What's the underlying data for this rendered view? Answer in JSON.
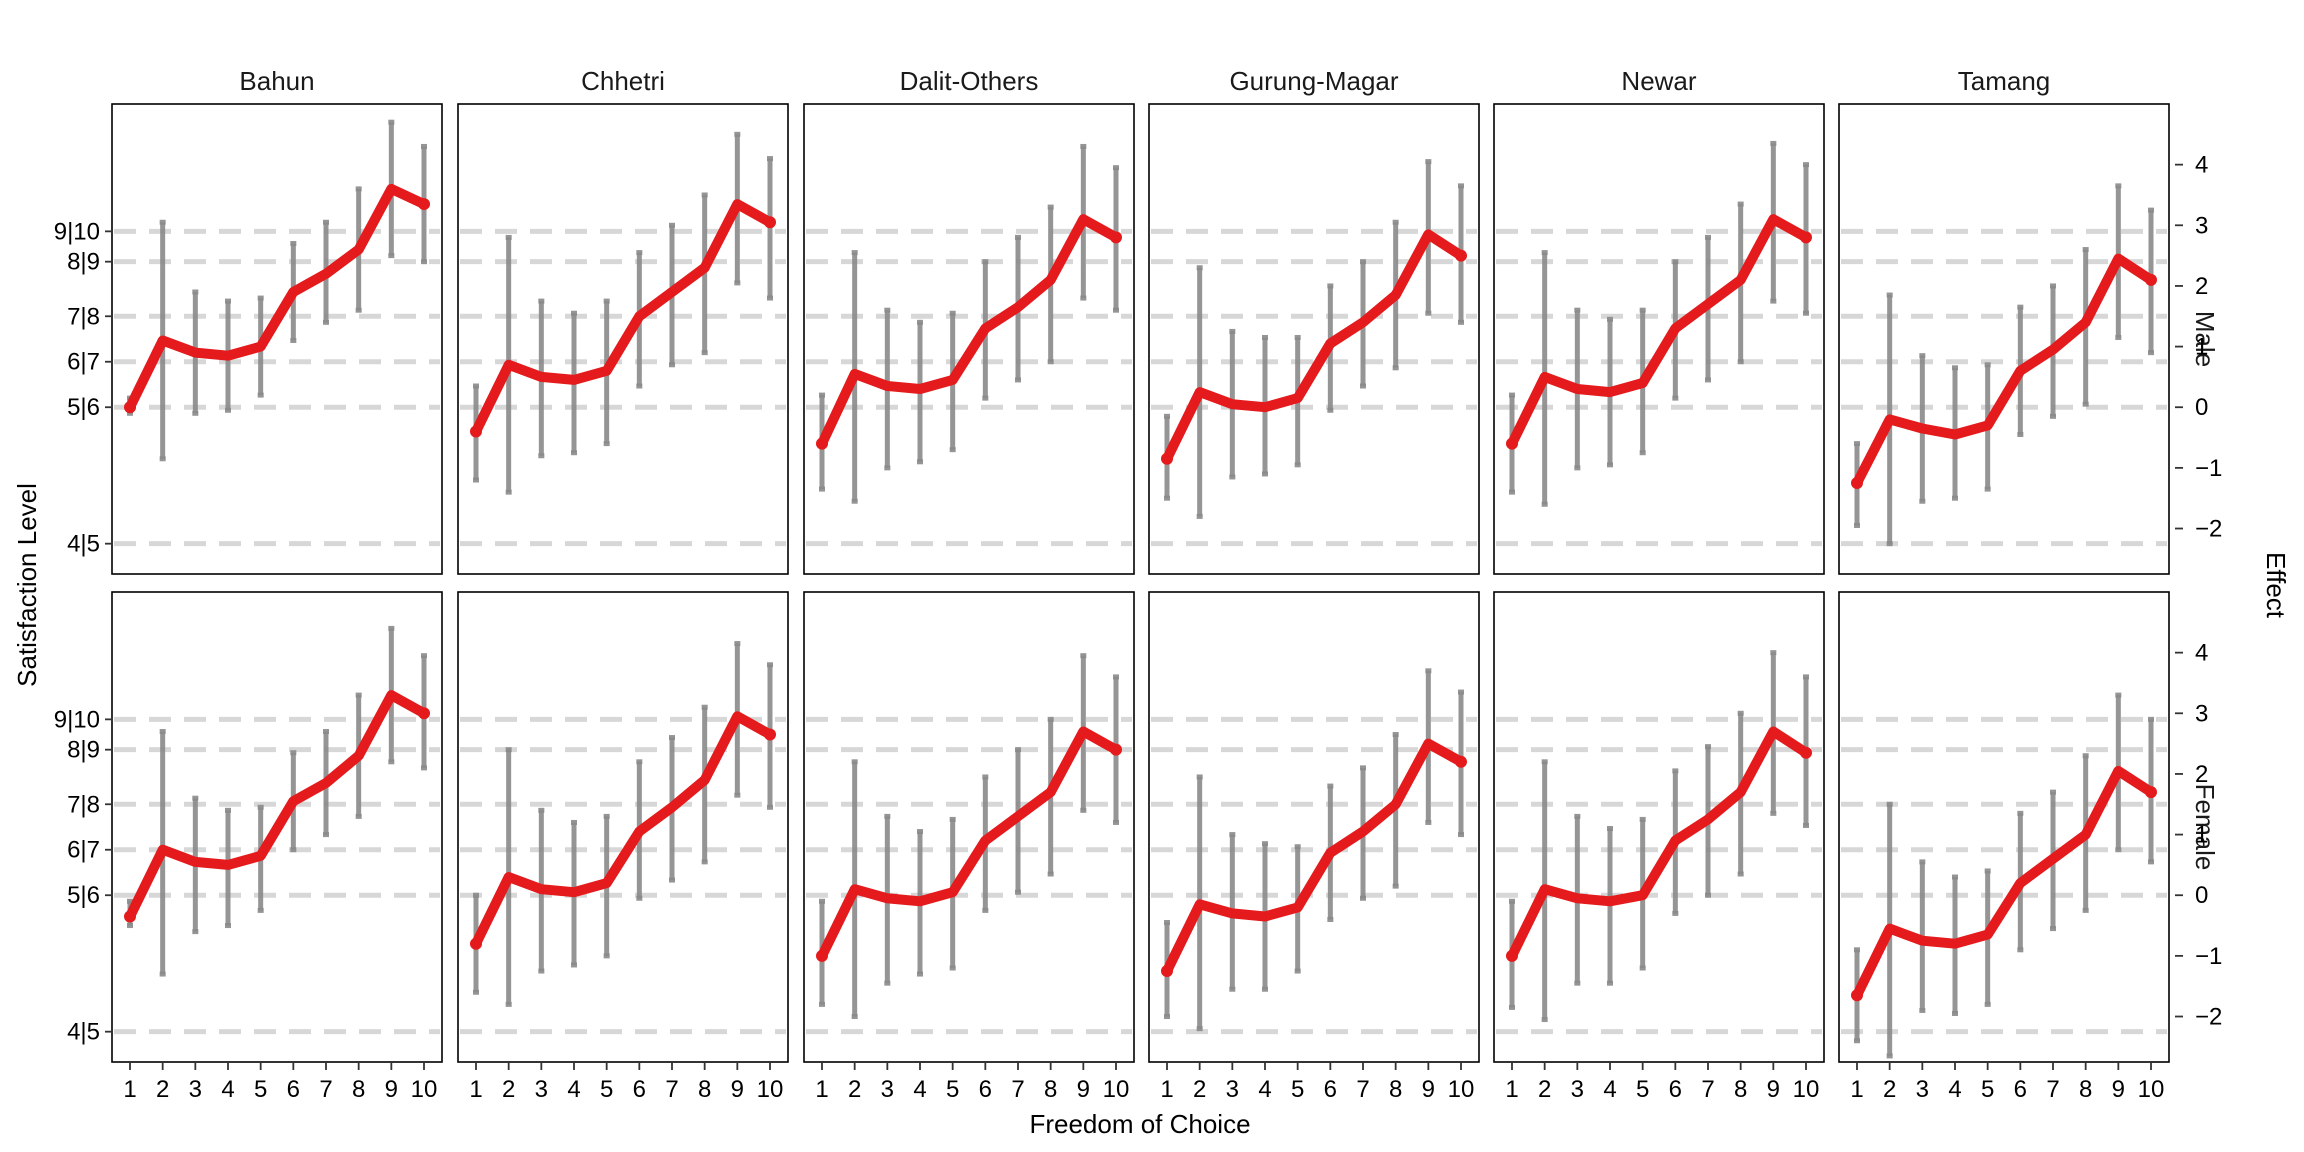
{
  "chart_data": {
    "type": "line",
    "facet_columns": [
      "Bahun",
      "Chhetri",
      "Dalit-Others",
      "Gurung-Magar",
      "Newar",
      "Tamang"
    ],
    "facet_rows": [
      "Male",
      "Female"
    ],
    "xlabel": "Freedom of Choice",
    "ylabel_left": "Satisfaction Level",
    "ylabel_right": "Effect",
    "x": [
      1,
      2,
      3,
      4,
      5,
      6,
      7,
      8,
      9,
      10
    ],
    "ylim": [
      -2.75,
      5.0
    ],
    "right_ticks": [
      -2,
      -1,
      0,
      1,
      2,
      3,
      4
    ],
    "thresholds": [
      {
        "label": "4|5",
        "value": -2.25
      },
      {
        "label": "5|6",
        "value": 0.0
      },
      {
        "label": "6|7",
        "value": 0.75
      },
      {
        "label": "7|8",
        "value": 1.5
      },
      {
        "label": "8|9",
        "value": 2.4
      },
      {
        "label": "9|10",
        "value": 2.9
      }
    ],
    "series_color": "#e41a1c",
    "errorbar_color": "#8a8a8a",
    "threshold_color": "#d7d7d7",
    "panels": [
      {
        "row": "Male",
        "column": "Bahun",
        "values": [
          0.0,
          1.1,
          0.9,
          0.85,
          1.0,
          1.9,
          2.2,
          2.6,
          3.6,
          3.35
        ],
        "lower": [
          -0.1,
          -0.85,
          -0.1,
          -0.05,
          0.2,
          1.1,
          1.4,
          1.6,
          2.5,
          2.4
        ],
        "upper": [
          0.15,
          3.05,
          1.9,
          1.75,
          1.8,
          2.7,
          3.05,
          3.6,
          4.7,
          4.3
        ]
      },
      {
        "row": "Male",
        "column": "Chhetri",
        "values": [
          -0.4,
          0.7,
          0.5,
          0.45,
          0.6,
          1.5,
          1.9,
          2.3,
          3.35,
          3.05
        ],
        "lower": [
          -1.2,
          -1.4,
          -0.8,
          -0.75,
          -0.6,
          0.35,
          0.7,
          0.9,
          2.05,
          1.8
        ],
        "upper": [
          0.35,
          2.8,
          1.75,
          1.55,
          1.75,
          2.55,
          3.0,
          3.5,
          4.5,
          4.1
        ]
      },
      {
        "row": "Male",
        "column": "Dalit-Others",
        "values": [
          -0.6,
          0.55,
          0.35,
          0.3,
          0.45,
          1.3,
          1.65,
          2.1,
          3.1,
          2.8
        ],
        "lower": [
          -1.35,
          -1.55,
          -1.0,
          -0.9,
          -0.7,
          0.15,
          0.45,
          0.75,
          1.8,
          1.6
        ],
        "upper": [
          0.2,
          2.55,
          1.6,
          1.4,
          1.55,
          2.4,
          2.8,
          3.3,
          4.3,
          3.95
        ]
      },
      {
        "row": "Male",
        "column": "Gurung-Magar",
        "values": [
          -0.85,
          0.25,
          0.05,
          0.0,
          0.15,
          1.05,
          1.4,
          1.85,
          2.85,
          2.5
        ],
        "lower": [
          -1.5,
          -1.8,
          -1.15,
          -1.1,
          -0.95,
          -0.05,
          0.35,
          0.65,
          1.55,
          1.4
        ],
        "upper": [
          -0.15,
          2.3,
          1.25,
          1.15,
          1.15,
          2.0,
          2.4,
          3.05,
          4.05,
          3.65
        ]
      },
      {
        "row": "Male",
        "column": "Newar",
        "values": [
          -0.6,
          0.5,
          0.3,
          0.25,
          0.4,
          1.3,
          1.7,
          2.1,
          3.1,
          2.8
        ],
        "lower": [
          -1.4,
          -1.6,
          -1.0,
          -0.95,
          -0.75,
          0.15,
          0.45,
          0.75,
          1.75,
          1.55
        ],
        "upper": [
          0.2,
          2.55,
          1.6,
          1.45,
          1.6,
          2.4,
          2.8,
          3.35,
          4.35,
          4.0
        ]
      },
      {
        "row": "Male",
        "column": "Tamang",
        "values": [
          -1.25,
          -0.2,
          -0.35,
          -0.45,
          -0.3,
          0.6,
          0.95,
          1.4,
          2.45,
          2.1
        ],
        "lower": [
          -1.95,
          -2.25,
          -1.55,
          -1.5,
          -1.35,
          -0.45,
          -0.15,
          0.05,
          1.15,
          0.9
        ],
        "upper": [
          -0.6,
          1.85,
          0.85,
          0.65,
          0.7,
          1.65,
          2.0,
          2.6,
          3.65,
          3.25
        ]
      },
      {
        "row": "Female",
        "column": "Bahun",
        "values": [
          -0.35,
          0.75,
          0.55,
          0.5,
          0.65,
          1.55,
          1.85,
          2.3,
          3.3,
          3.0
        ],
        "lower": [
          -0.5,
          -1.3,
          -0.6,
          -0.5,
          -0.25,
          0.75,
          1.0,
          1.3,
          2.2,
          2.1
        ],
        "upper": [
          -0.1,
          2.7,
          1.6,
          1.4,
          1.45,
          2.35,
          2.7,
          3.3,
          4.4,
          3.95
        ]
      },
      {
        "row": "Female",
        "column": "Chhetri",
        "values": [
          -0.8,
          0.3,
          0.1,
          0.05,
          0.2,
          1.05,
          1.45,
          1.9,
          2.95,
          2.65
        ],
        "lower": [
          -1.6,
          -1.8,
          -1.25,
          -1.15,
          -1.0,
          -0.05,
          0.25,
          0.55,
          1.65,
          1.45
        ],
        "upper": [
          0.0,
          2.4,
          1.4,
          1.2,
          1.3,
          2.2,
          2.6,
          3.1,
          4.15,
          3.8
        ]
      },
      {
        "row": "Female",
        "column": "Dalit-Others",
        "values": [
          -1.0,
          0.1,
          -0.05,
          -0.1,
          0.05,
          0.9,
          1.3,
          1.7,
          2.7,
          2.4
        ],
        "lower": [
          -1.8,
          -2.0,
          -1.45,
          -1.3,
          -1.2,
          -0.25,
          0.05,
          0.35,
          1.4,
          1.2
        ],
        "upper": [
          -0.1,
          2.2,
          1.3,
          1.05,
          1.25,
          1.95,
          2.4,
          2.9,
          3.95,
          3.6
        ]
      },
      {
        "row": "Female",
        "column": "Gurung-Magar",
        "values": [
          -1.25,
          -0.15,
          -0.3,
          -0.35,
          -0.2,
          0.7,
          1.05,
          1.5,
          2.5,
          2.2
        ],
        "lower": [
          -2.0,
          -2.2,
          -1.55,
          -1.55,
          -1.25,
          -0.4,
          -0.05,
          0.15,
          1.2,
          1.0
        ],
        "upper": [
          -0.45,
          1.95,
          1.0,
          0.85,
          0.8,
          1.8,
          2.1,
          2.65,
          3.7,
          3.35
        ]
      },
      {
        "row": "Female",
        "column": "Newar",
        "values": [
          -1.0,
          0.1,
          -0.05,
          -0.1,
          0.0,
          0.9,
          1.25,
          1.7,
          2.7,
          2.35
        ],
        "lower": [
          -1.85,
          -2.05,
          -1.45,
          -1.45,
          -1.2,
          -0.3,
          0.0,
          0.35,
          1.35,
          1.15
        ],
        "upper": [
          -0.1,
          2.2,
          1.3,
          1.1,
          1.25,
          2.05,
          2.45,
          3.0,
          4.0,
          3.6
        ]
      },
      {
        "row": "Female",
        "column": "Tamang",
        "values": [
          -1.65,
          -0.55,
          -0.75,
          -0.8,
          -0.65,
          0.2,
          0.6,
          1.0,
          2.05,
          1.7
        ],
        "lower": [
          -2.4,
          -2.65,
          -1.9,
          -1.95,
          -1.8,
          -0.9,
          -0.55,
          -0.25,
          0.75,
          0.55
        ],
        "upper": [
          -0.9,
          1.5,
          0.55,
          0.3,
          0.4,
          1.35,
          1.7,
          2.3,
          3.3,
          2.9
        ]
      }
    ]
  }
}
